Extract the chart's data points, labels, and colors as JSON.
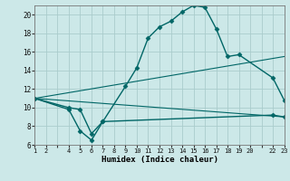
{
  "xlabel": "Humidex (Indice chaleur)",
  "bg_color": "#cce8e8",
  "grid_color": "#aacccc",
  "line_color": "#006666",
  "xlim": [
    1,
    23
  ],
  "ylim": [
    6,
    21
  ],
  "xticks": [
    1,
    2,
    3,
    4,
    5,
    6,
    7,
    8,
    9,
    10,
    11,
    12,
    13,
    14,
    15,
    16,
    17,
    18,
    19,
    20,
    21,
    22,
    23
  ],
  "xtick_labels": [
    "1",
    "2",
    "",
    "4",
    "5",
    "6",
    "7",
    "8",
    "9",
    "10",
    "11",
    "12",
    "13",
    "14",
    "15",
    "16",
    "17",
    "18",
    "19",
    "20",
    "",
    "22",
    "23"
  ],
  "yticks": [
    6,
    8,
    10,
    12,
    14,
    16,
    18,
    20
  ],
  "series": [
    {
      "x": [
        1,
        4,
        5,
        6,
        7,
        9,
        10,
        11,
        12,
        13,
        14,
        15,
        16,
        17,
        18,
        19,
        22,
        23
      ],
      "y": [
        11.0,
        10.0,
        9.8,
        7.2,
        8.5,
        12.3,
        14.3,
        17.5,
        18.7,
        19.3,
        20.3,
        21.0,
        20.8,
        18.5,
        15.5,
        15.7,
        13.2,
        10.8
      ],
      "marker": "D",
      "markersize": 2.5,
      "linewidth": 1.0,
      "linestyle": "-"
    },
    {
      "x": [
        1,
        4,
        5,
        6,
        7,
        22,
        23
      ],
      "y": [
        11.0,
        9.8,
        7.5,
        6.5,
        8.5,
        9.2,
        9.0
      ],
      "marker": "D",
      "markersize": 2.5,
      "linewidth": 1.0,
      "linestyle": "-"
    },
    {
      "x": [
        1,
        23
      ],
      "y": [
        11.0,
        15.5
      ],
      "marker": null,
      "markersize": 0,
      "linewidth": 0.8,
      "linestyle": "-"
    },
    {
      "x": [
        1,
        23
      ],
      "y": [
        11.0,
        9.0
      ],
      "marker": null,
      "markersize": 0,
      "linewidth": 0.8,
      "linestyle": "-"
    }
  ]
}
